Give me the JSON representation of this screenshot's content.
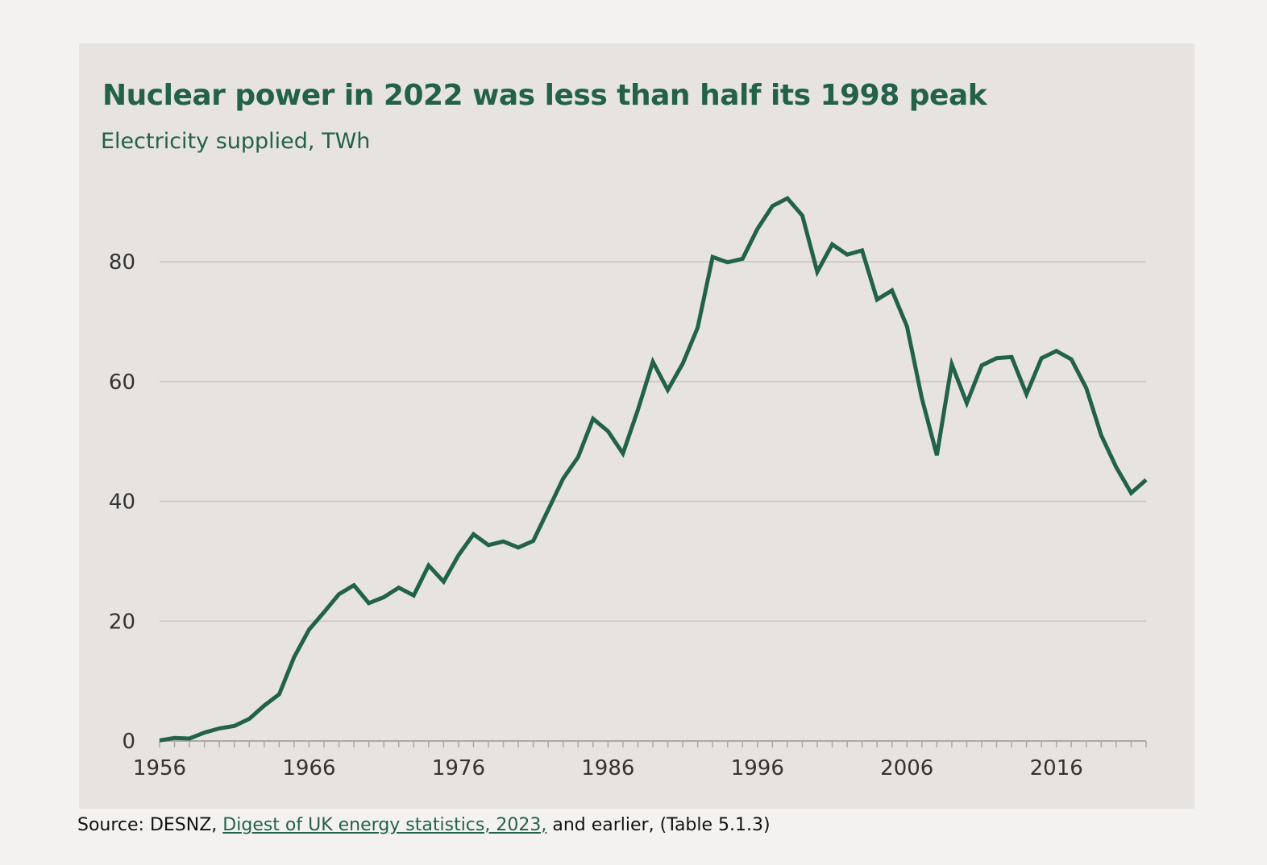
{
  "colors": {
    "line": "#22614a",
    "grid": "#cfccc8",
    "panel": "#e6e3e0",
    "page": "#f3f2f0"
  },
  "chart_data": {
    "type": "line",
    "title": "Nuclear power in 2022 was less than half its 1998 peak",
    "subtitle": "Electricity supplied, TWh",
    "xlabel": "",
    "ylabel": "",
    "xlim": [
      1956,
      2022
    ],
    "ylim": [
      0,
      92
    ],
    "yticks": [
      0,
      20,
      40,
      60,
      80
    ],
    "xticks": [
      1956,
      1966,
      1976,
      1986,
      1996,
      2006,
      2016
    ],
    "grid": true,
    "series": [
      {
        "x": [
          1956,
          1957,
          1958,
          1959,
          1960,
          1961,
          1962,
          1963,
          1964,
          1965,
          1966,
          1967,
          1968,
          1969,
          1970,
          1971,
          1972,
          1973,
          1974,
          1975,
          1976,
          1977,
          1978,
          1979,
          1980,
          1981,
          1982,
          1983,
          1984,
          1985,
          1986,
          1987,
          1988,
          1989,
          1990,
          1991,
          1992,
          1993,
          1994,
          1995,
          1996,
          1997,
          1998,
          1999,
          2000,
          2001,
          2002,
          2003,
          2004,
          2005,
          2006,
          2007,
          2008,
          2009,
          2010,
          2011,
          2012,
          2013,
          2014,
          2015,
          2016,
          2017,
          2018,
          2019,
          2020,
          2021,
          2022
        ],
        "values": [
          0.1,
          0.5,
          0.4,
          1.4,
          2.1,
          2.5,
          3.7,
          5.9,
          7.8,
          14.0,
          18.6,
          21.5,
          24.5,
          26.0,
          23.0,
          24.0,
          25.6,
          24.3,
          29.3,
          26.6,
          31.0,
          34.5,
          32.7,
          33.3,
          32.3,
          33.4,
          38.6,
          43.8,
          47.4,
          53.8,
          51.7,
          48.0,
          55.3,
          63.3,
          58.6,
          63.0,
          69.0,
          80.8,
          79.9,
          80.5,
          85.5,
          89.3,
          90.6,
          87.7,
          78.3,
          82.9,
          81.2,
          81.9,
          73.7,
          75.2,
          69.2,
          57.2,
          47.7,
          62.9,
          56.4,
          62.7,
          63.9,
          64.1,
          57.9,
          63.9,
          65.1,
          63.7,
          58.9,
          51.0,
          45.7,
          41.4,
          43.6
        ]
      }
    ]
  },
  "source": {
    "prefix": "Source: DESNZ, ",
    "link_text": "Digest of UK energy statistics, 2023,",
    "suffix": " and earlier, (Table 5.1.3)"
  }
}
